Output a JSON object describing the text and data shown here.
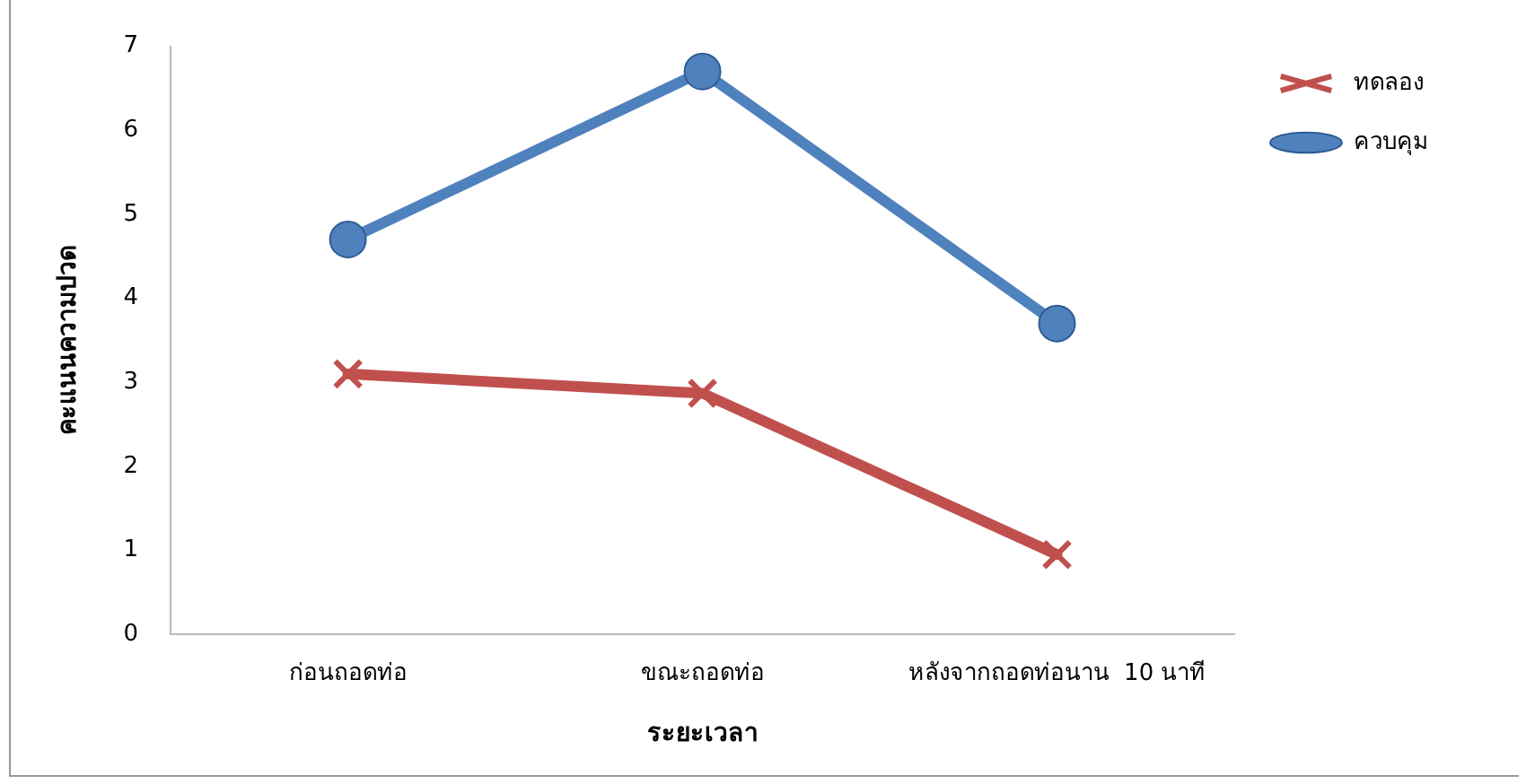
{
  "chart_data": {
    "type": "line",
    "xlabel": "ระยะเวลา",
    "ylabel": "คะแนนความปวด",
    "categories": [
      "ก่อนถอดท่อ",
      "ขณะถอดท่อ",
      "หลังจากถอดท่อนาน  10 นาที"
    ],
    "series": [
      {
        "name": "ทดลอง",
        "color": "#c0504d",
        "marker": "cross",
        "values": [
          3.1,
          2.87,
          0.95
        ]
      },
      {
        "name": "ควบคุม",
        "color": "#4f81bd",
        "marker": "circle",
        "values": [
          4.7,
          6.7,
          3.7
        ]
      }
    ],
    "ylim": [
      0,
      7
    ],
    "yticks": [
      0,
      1,
      2,
      3,
      4,
      5,
      6,
      7
    ],
    "grid": false,
    "legend": "top right",
    "line_style": "solid"
  }
}
